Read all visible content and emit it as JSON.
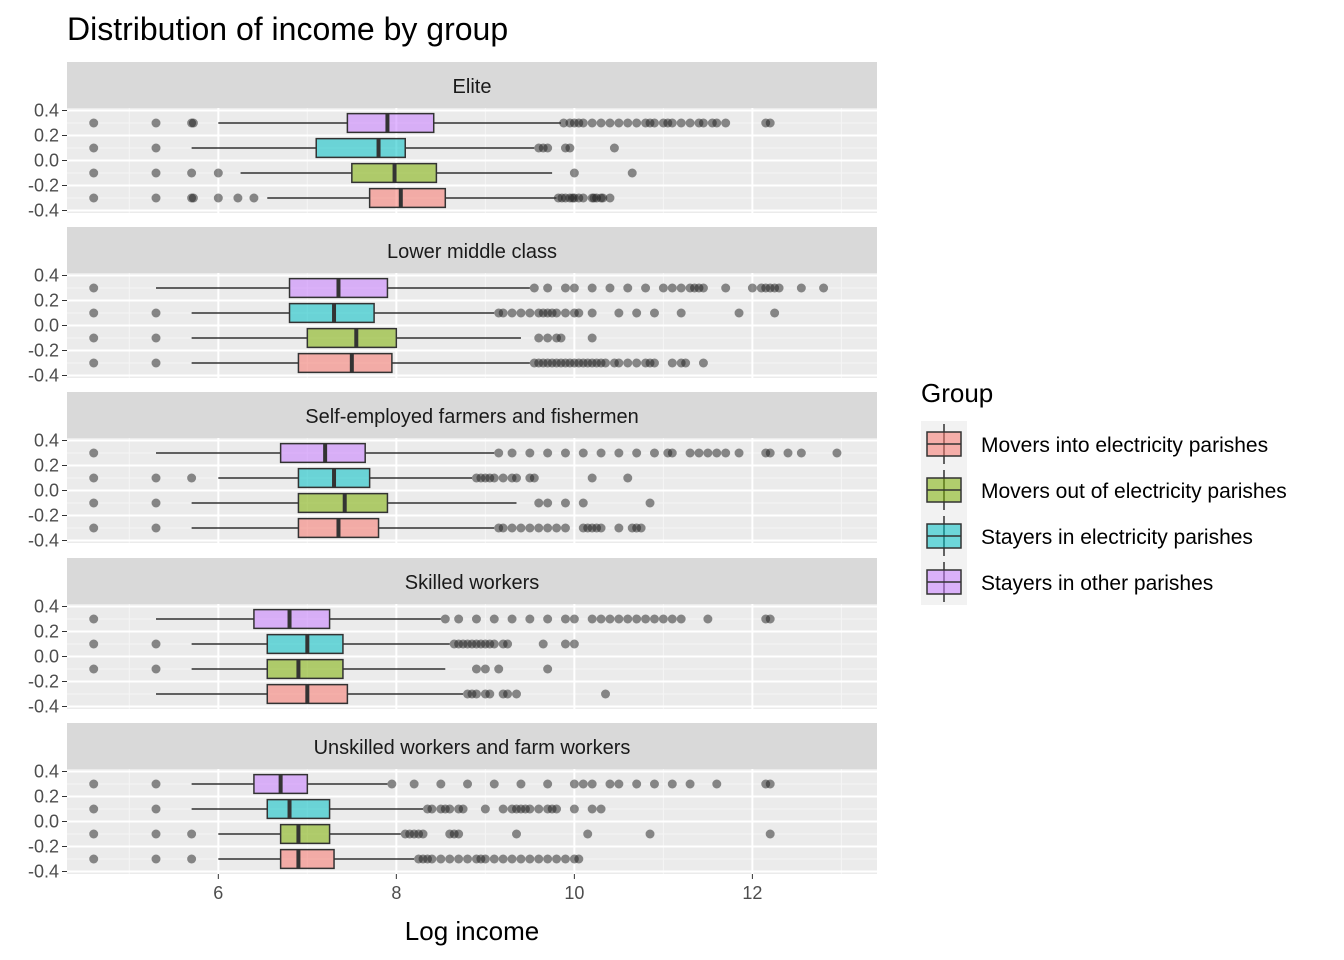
{
  "chart_data": {
    "type": "boxplot",
    "title": "Distribution of income by group",
    "xlabel": "Log income",
    "ylabel": "",
    "xlim": [
      4.3,
      13.4
    ],
    "ylim": [
      -0.4,
      0.4
    ],
    "x_ticks": [
      6,
      8,
      10,
      12
    ],
    "y_ticks": [
      0.4,
      0.2,
      0.0,
      -0.2,
      -0.4
    ],
    "y_tick_labels": [
      "0.4",
      "0.2",
      "0.0",
      "-0.2",
      "-0.4"
    ],
    "grid": true,
    "legend": {
      "title": "Group",
      "position": "right",
      "entries": [
        {
          "name": "Movers into electricity parishes",
          "color": "#F8766D"
        },
        {
          "name": "Movers out of electricity parishes",
          "color": "#7CAE00"
        },
        {
          "name": "Stayers in electricity parishes",
          "color": "#00BFC4"
        },
        {
          "name": "Stayers in other parishes",
          "color": "#C77CFF"
        }
      ]
    },
    "series_order_bottom_to_top": [
      "Movers into electricity parishes",
      "Movers out of electricity parishes",
      "Stayers in electricity parishes",
      "Stayers in other parishes"
    ],
    "panels": [
      {
        "label": "Elite",
        "boxes": [
          {
            "group": "Movers into electricity parishes",
            "whisker_low": 6.55,
            "q1": 7.7,
            "median": 8.05,
            "q3": 8.55,
            "whisker_high": 9.8,
            "outliers": [
              4.6,
              5.3,
              5.7,
              5.72,
              6.0,
              6.22,
              6.4,
              9.82,
              9.86,
              9.9,
              9.95,
              9.98,
              10.0,
              10.05,
              10.1,
              10.2,
              10.22,
              10.25,
              10.3,
              10.32,
              10.4
            ]
          },
          {
            "group": "Movers out of electricity parishes",
            "whisker_low": 6.25,
            "q1": 7.5,
            "median": 7.98,
            "q3": 8.45,
            "whisker_high": 9.75,
            "outliers": [
              4.6,
              5.3,
              5.7,
              6.0,
              10.0,
              10.65
            ]
          },
          {
            "group": "Stayers in electricity parishes",
            "whisker_low": 5.7,
            "q1": 7.1,
            "median": 7.8,
            "q3": 8.1,
            "whisker_high": 9.55,
            "outliers": [
              4.6,
              5.3,
              9.6,
              9.65,
              9.7,
              9.9,
              9.95,
              10.45
            ]
          },
          {
            "group": "Stayers in other parishes",
            "whisker_low": 6.0,
            "q1": 7.45,
            "median": 7.9,
            "q3": 8.42,
            "whisker_high": 9.85,
            "outliers": [
              4.6,
              5.3,
              5.7,
              5.72,
              9.88,
              9.95,
              10.0,
              10.05,
              10.1,
              10.2,
              10.3,
              10.4,
              10.5,
              10.6,
              10.7,
              10.8,
              10.85,
              10.9,
              11.0,
              11.05,
              11.1,
              11.2,
              11.3,
              11.4,
              11.45,
              11.55,
              11.6,
              11.7,
              12.15,
              12.2
            ]
          }
        ]
      },
      {
        "label": "Lower middle class",
        "boxes": [
          {
            "group": "Movers into electricity parishes",
            "whisker_low": 5.7,
            "q1": 6.9,
            "median": 7.5,
            "q3": 7.95,
            "whisker_high": 9.5,
            "outliers": [
              4.6,
              5.3,
              9.55,
              9.6,
              9.65,
              9.7,
              9.75,
              9.8,
              9.85,
              9.9,
              9.95,
              10.0,
              10.05,
              10.1,
              10.15,
              10.2,
              10.25,
              10.3,
              10.35,
              10.45,
              10.5,
              10.6,
              10.7,
              10.8,
              10.85,
              10.9,
              11.1,
              11.2,
              11.25,
              11.45
            ]
          },
          {
            "group": "Movers out of electricity parishes",
            "whisker_low": 5.7,
            "q1": 7.0,
            "median": 7.55,
            "q3": 8.0,
            "whisker_high": 9.4,
            "outliers": [
              4.6,
              5.3,
              9.6,
              9.7,
              9.8,
              9.85,
              10.2
            ]
          },
          {
            "group": "Stayers in electricity parishes",
            "whisker_low": 5.7,
            "q1": 6.8,
            "median": 7.3,
            "q3": 7.75,
            "whisker_high": 9.1,
            "outliers": [
              4.6,
              5.3,
              9.15,
              9.2,
              9.3,
              9.4,
              9.5,
              9.6,
              9.65,
              9.7,
              9.75,
              9.8,
              9.9,
              10.0,
              10.05,
              10.2,
              10.5,
              10.7,
              10.9,
              11.2,
              11.85,
              12.25
            ]
          },
          {
            "group": "Stayers in other parishes",
            "whisker_low": 5.3,
            "q1": 6.8,
            "median": 7.35,
            "q3": 7.9,
            "whisker_high": 9.5,
            "outliers": [
              4.6,
              9.55,
              9.7,
              9.9,
              10.0,
              10.2,
              10.4,
              10.6,
              10.8,
              11.0,
              11.1,
              11.2,
              11.3,
              11.35,
              11.4,
              11.45,
              11.7,
              12.0,
              12.1,
              12.15,
              12.2,
              12.25,
              12.3,
              12.55,
              12.8
            ]
          }
        ]
      },
      {
        "label": "Self-employed farmers and fishermen",
        "boxes": [
          {
            "group": "Movers into electricity parishes",
            "whisker_low": 5.7,
            "q1": 6.9,
            "median": 7.35,
            "q3": 7.8,
            "whisker_high": 9.1,
            "outliers": [
              4.6,
              5.3,
              9.15,
              9.2,
              9.3,
              9.4,
              9.5,
              9.6,
              9.7,
              9.8,
              9.9,
              10.1,
              10.15,
              10.2,
              10.25,
              10.3,
              10.5,
              10.65,
              10.7,
              10.75
            ]
          },
          {
            "group": "Movers out of electricity parishes",
            "whisker_low": 5.7,
            "q1": 6.9,
            "median": 7.42,
            "q3": 7.9,
            "whisker_high": 9.35,
            "outliers": [
              4.6,
              5.3,
              9.6,
              9.7,
              9.9,
              10.1,
              10.85
            ]
          },
          {
            "group": "Stayers in electricity parishes",
            "whisker_low": 6.0,
            "q1": 6.9,
            "median": 7.3,
            "q3": 7.7,
            "whisker_high": 8.85,
            "outliers": [
              4.6,
              5.3,
              5.7,
              8.9,
              8.95,
              9.0,
              9.05,
              9.1,
              9.2,
              9.3,
              9.35,
              9.5,
              9.55,
              10.2,
              10.6
            ]
          },
          {
            "group": "Stayers in other parishes",
            "whisker_low": 5.3,
            "q1": 6.7,
            "median": 7.2,
            "q3": 7.65,
            "whisker_high": 9.1,
            "outliers": [
              4.6,
              9.15,
              9.3,
              9.5,
              9.7,
              9.9,
              10.1,
              10.3,
              10.5,
              10.7,
              10.9,
              11.05,
              11.1,
              11.3,
              11.4,
              11.5,
              11.6,
              11.7,
              11.85,
              12.15,
              12.2,
              12.4,
              12.55,
              12.95
            ]
          }
        ]
      },
      {
        "label": "Skilled workers",
        "boxes": [
          {
            "group": "Movers into electricity parishes",
            "whisker_low": 5.3,
            "q1": 6.55,
            "median": 7.0,
            "q3": 7.45,
            "whisker_high": 8.75,
            "outliers": [
              8.8,
              8.85,
              8.9,
              9.0,
              9.05,
              9.2,
              9.25,
              9.35,
              10.35
            ]
          },
          {
            "group": "Movers out of electricity parishes",
            "whisker_low": 5.7,
            "q1": 6.55,
            "median": 6.9,
            "q3": 7.4,
            "whisker_high": 8.55,
            "outliers": [
              4.6,
              5.3,
              8.9,
              9.0,
              9.15,
              9.7
            ]
          },
          {
            "group": "Stayers in electricity parishes",
            "whisker_low": 5.7,
            "q1": 6.55,
            "median": 7.0,
            "q3": 7.4,
            "whisker_high": 8.6,
            "outliers": [
              4.6,
              5.3,
              8.65,
              8.7,
              8.75,
              8.8,
              8.85,
              8.9,
              8.95,
              9.0,
              9.05,
              9.1,
              9.2,
              9.25,
              9.65,
              9.9,
              10.0
            ]
          },
          {
            "group": "Stayers in other parishes",
            "whisker_low": 5.3,
            "q1": 6.4,
            "median": 6.8,
            "q3": 7.25,
            "whisker_high": 8.5,
            "outliers": [
              4.6,
              8.55,
              8.7,
              8.9,
              9.1,
              9.3,
              9.5,
              9.7,
              9.9,
              10.0,
              10.2,
              10.3,
              10.4,
              10.5,
              10.6,
              10.7,
              10.8,
              10.9,
              11.0,
              11.1,
              11.2,
              11.5,
              12.15,
              12.2
            ]
          }
        ]
      },
      {
        "label": "Unskilled workers and farm workers",
        "boxes": [
          {
            "group": "Movers into electricity parishes",
            "whisker_low": 6.0,
            "q1": 6.7,
            "median": 6.9,
            "q3": 7.3,
            "whisker_high": 8.2,
            "outliers": [
              4.6,
              5.3,
              5.7,
              8.25,
              8.3,
              8.35,
              8.4,
              8.5,
              8.6,
              8.7,
              8.8,
              8.9,
              8.95,
              9.0,
              9.1,
              9.2,
              9.3,
              9.4,
              9.5,
              9.6,
              9.7,
              9.8,
              9.9,
              10.0,
              10.05
            ]
          },
          {
            "group": "Movers out of electricity parishes",
            "whisker_low": 6.0,
            "q1": 6.7,
            "median": 6.9,
            "q3": 7.25,
            "whisker_high": 8.05,
            "outliers": [
              4.6,
              5.3,
              5.7,
              8.1,
              8.15,
              8.2,
              8.25,
              8.3,
              8.6,
              8.65,
              8.7,
              9.35,
              10.15,
              10.85,
              12.2
            ]
          },
          {
            "group": "Stayers in electricity parishes",
            "whisker_low": 5.7,
            "q1": 6.55,
            "median": 6.8,
            "q3": 7.25,
            "whisker_high": 8.3,
            "outliers": [
              4.6,
              5.3,
              8.35,
              8.4,
              8.5,
              8.55,
              8.6,
              8.7,
              8.75,
              9.0,
              9.2,
              9.3,
              9.35,
              9.4,
              9.45,
              9.5,
              9.6,
              9.7,
              9.75,
              9.8,
              10.0,
              10.2,
              10.3
            ]
          },
          {
            "group": "Stayers in other parishes",
            "whisker_low": 5.7,
            "q1": 6.4,
            "median": 6.7,
            "q3": 7.0,
            "whisker_high": 7.9,
            "outliers": [
              4.6,
              5.3,
              7.95,
              8.2,
              8.5,
              8.8,
              9.1,
              9.4,
              9.7,
              10.0,
              10.1,
              10.2,
              10.4,
              10.5,
              10.7,
              10.9,
              11.1,
              11.3,
              11.6,
              12.15,
              12.2
            ]
          }
        ]
      }
    ]
  }
}
